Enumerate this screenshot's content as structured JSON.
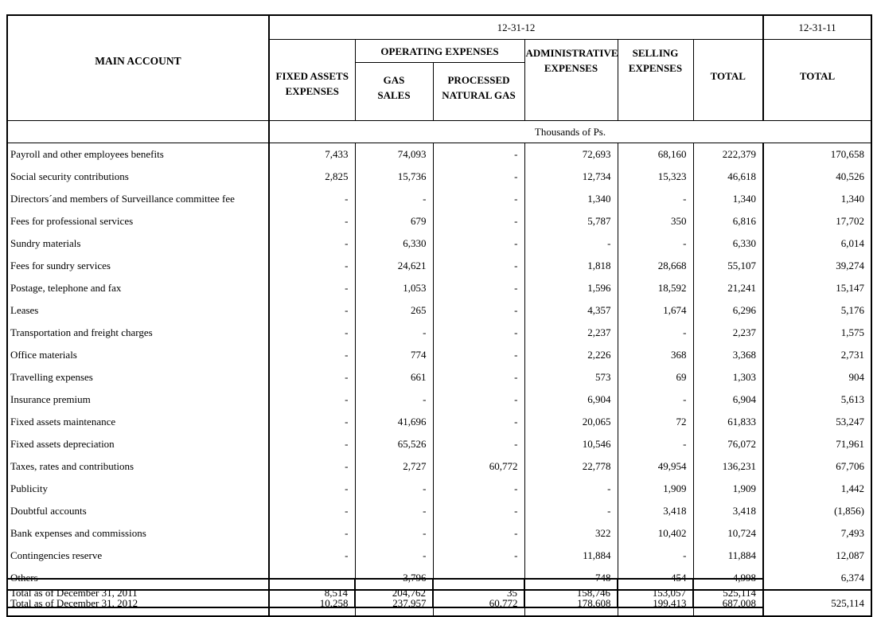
{
  "table": {
    "corner_label": "MAIN ACCOUNT",
    "period_current": "12-31-12",
    "period_prior": "12-31-11",
    "group_header": "OPERATING EXPENSES",
    "units_note": "Thousands of Ps.",
    "columns": [
      {
        "line1": "FIXED ASSETS",
        "line2": "EXPENSES"
      },
      {
        "line1": "GAS",
        "line2": "SALES"
      },
      {
        "line1": "PROCESSED",
        "line2": "NATURAL GAS"
      },
      {
        "line1": "ADMINISTRATIVE",
        "line2": "EXPENSES"
      },
      {
        "line1": "SELLING",
        "line2": "EXPENSES"
      },
      {
        "line1": "TOTAL",
        "line2": ""
      },
      {
        "line1": "TOTAL",
        "line2": ""
      }
    ],
    "rows": [
      {
        "label": "Payroll and other employees benefits",
        "values": [
          "7,433",
          "74,093",
          "-",
          "72,693",
          "68,160",
          "222,379",
          "170,658"
        ]
      },
      {
        "label": "Social security contributions",
        "values": [
          "2,825",
          "15,736",
          "-",
          "12,734",
          "15,323",
          "46,618",
          "40,526"
        ]
      },
      {
        "label": "Directors´and members of Surveillance committee fee",
        "values": [
          "-",
          "-",
          "-",
          "1,340",
          "-",
          "1,340",
          "1,340"
        ]
      },
      {
        "label": "Fees for professional services",
        "values": [
          "-",
          "679",
          "-",
          "5,787",
          "350",
          "6,816",
          "17,702"
        ]
      },
      {
        "label": "Sundry materials",
        "values": [
          "-",
          "6,330",
          "-",
          "-",
          "-",
          "6,330",
          "6,014"
        ]
      },
      {
        "label": "Fees for sundry services",
        "values": [
          "-",
          "24,621",
          "-",
          "1,818",
          "28,668",
          "55,107",
          "39,274"
        ]
      },
      {
        "label": "Postage, telephone and fax",
        "values": [
          "-",
          "1,053",
          "-",
          "1,596",
          "18,592",
          "21,241",
          "15,147"
        ]
      },
      {
        "label": "Leases",
        "values": [
          "-",
          "265",
          "-",
          "4,357",
          "1,674",
          "6,296",
          "5,176"
        ]
      },
      {
        "label": "Transportation and freight charges",
        "values": [
          "-",
          "-",
          "-",
          "2,237",
          "-",
          "2,237",
          "1,575"
        ]
      },
      {
        "label": "Office materials",
        "values": [
          "-",
          "774",
          "-",
          "2,226",
          "368",
          "3,368",
          "2,731"
        ]
      },
      {
        "label": "Travelling expenses",
        "values": [
          "-",
          "661",
          "-",
          "573",
          "69",
          "1,303",
          "904"
        ]
      },
      {
        "label": "Insurance premium",
        "values": [
          "-",
          "-",
          "-",
          "6,904",
          "-",
          "6,904",
          "5,613"
        ]
      },
      {
        "label": "Fixed assets maintenance",
        "values": [
          "-",
          "41,696",
          "-",
          "20,065",
          "72",
          "61,833",
          "53,247"
        ]
      },
      {
        "label": "Fixed assets depreciation",
        "values": [
          "-",
          "65,526",
          "-",
          "10,546",
          "-",
          "76,072",
          "71,961"
        ]
      },
      {
        "label": "Taxes, rates and contributions",
        "values": [
          "-",
          "2,727",
          "60,772",
          "22,778",
          "49,954",
          "136,231",
          "67,706"
        ]
      },
      {
        "label": "Publicity",
        "values": [
          "-",
          "-",
          "-",
          "-",
          "1,909",
          "1,909",
          "1,442"
        ]
      },
      {
        "label": "Doubtful accounts",
        "values": [
          "-",
          "-",
          "-",
          "-",
          "3,418",
          "3,418",
          "(1,856)"
        ]
      },
      {
        "label": "Bank expenses and commissions",
        "values": [
          "-",
          "-",
          "-",
          "322",
          "10,402",
          "10,724",
          "7,493"
        ]
      },
      {
        "label": "Contingencies reserve",
        "values": [
          "-",
          "-",
          "-",
          "11,884",
          "-",
          "11,884",
          "12,087"
        ]
      },
      {
        "label": "Others",
        "values": [
          "-",
          "3,796",
          "-",
          "748",
          "454",
          "4,998",
          "6,374"
        ]
      }
    ],
    "total_2012_row": {
      "label": "Total as of December 31, 2012",
      "values": [
        "10,258",
        "237,957",
        "60,772",
        "178,608",
        "199,413",
        "687,008",
        "525,114"
      ]
    },
    "total_2011_row": {
      "label": "Total as of December 31, 2011",
      "values": [
        "8,514",
        "204,762",
        "35",
        "158,746",
        "153,057",
        "525,114"
      ]
    }
  }
}
